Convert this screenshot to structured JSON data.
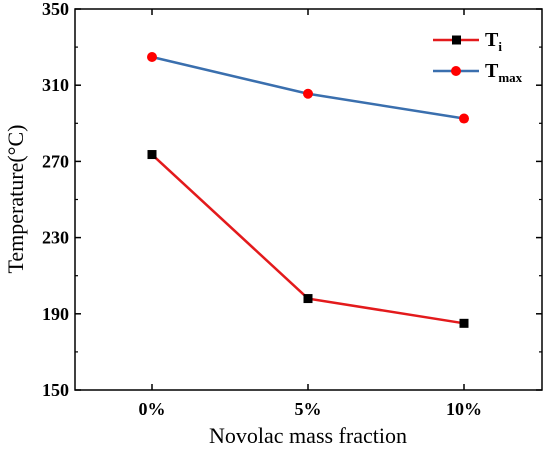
{
  "chart_data": {
    "type": "line",
    "title": "",
    "xlabel": "Novolac mass fraction",
    "ylabel": "Temperature(°C)",
    "categories": [
      "0%",
      "5%",
      "10%"
    ],
    "ylim": [
      150,
      350
    ],
    "yticks": [
      150,
      190,
      230,
      270,
      310,
      350
    ],
    "grid": false,
    "legend_position": "top-right",
    "series": [
      {
        "name": "Ti",
        "name_main": "T",
        "name_sub": "i",
        "values": [
          273.6,
          198,
          185
        ],
        "color": "#e31a1c",
        "marker": "square",
        "marker_color": "#000000"
      },
      {
        "name": "Tmax",
        "name_main": "T",
        "name_sub": "max",
        "values": [
          324.8,
          305.5,
          292.5
        ],
        "color": "#3a6fae",
        "marker": "circle",
        "marker_color": "#ff0000"
      }
    ]
  }
}
